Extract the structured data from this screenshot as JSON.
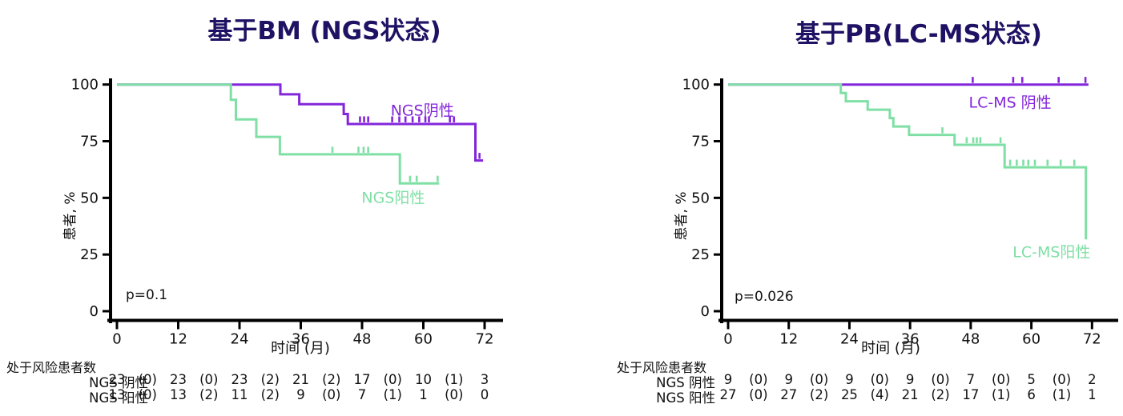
{
  "colors": {
    "negative": "#8325da",
    "positive": "#7fdfa5",
    "title": "#1f1163",
    "axis": "#000000",
    "text": "#111111"
  },
  "chart_data": [
    {
      "type": "line",
      "subtype": "kaplan-meier",
      "title": "基于BM (NGS状态)",
      "xlabel": "时间 (月)",
      "ylabel": "患者, %",
      "p_value": "p=0.1",
      "xlim": [
        0,
        72
      ],
      "ylim": [
        0,
        100
      ],
      "x_ticks": [
        0,
        12,
        24,
        36,
        48,
        60,
        72
      ],
      "y_ticks": [
        0,
        25,
        50,
        75,
        100
      ],
      "grid": false,
      "series": [
        {
          "id": "ngs-negative",
          "name": "NGS阴性",
          "color_key": "negative",
          "n": 23,
          "steps": [
            [
              0,
              100
            ],
            [
              32,
              100
            ],
            [
              32,
              95.7
            ],
            [
              35.7,
              95.7
            ],
            [
              35.7,
              91.3
            ],
            [
              44.4,
              91.3
            ],
            [
              44.4,
              87
            ],
            [
              45.2,
              87
            ],
            [
              45.2,
              82.6
            ],
            [
              70.2,
              82.6
            ],
            [
              70.2,
              66.5
            ],
            [
              71.7,
              66.5
            ]
          ],
          "censor_marks": [
            [
              47.6,
              82.6
            ],
            [
              48.4,
              82.6
            ],
            [
              49.2,
              82.6
            ],
            [
              53.9,
              82.6
            ],
            [
              55.3,
              82.6
            ],
            [
              56.5,
              82.6
            ],
            [
              57.9,
              82.6
            ],
            [
              59.2,
              82.6
            ],
            [
              60.4,
              82.6
            ],
            [
              61.1,
              82.6
            ],
            [
              65.2,
              82.6
            ],
            [
              66,
              82.6
            ],
            [
              71,
              66.5
            ]
          ],
          "label": {
            "text": "NGS阴性",
            "month": 59.8,
            "pct": 88.5
          }
        },
        {
          "id": "ngs-positive",
          "name": "NGS阳性",
          "color_key": "positive",
          "n": 13,
          "steps": [
            [
              0,
              100
            ],
            [
              22.3,
              100
            ],
            [
              22.3,
              93.3
            ],
            [
              23.3,
              93.3
            ],
            [
              23.3,
              84.6
            ],
            [
              27.3,
              84.6
            ],
            [
              27.3,
              76.9
            ],
            [
              31.9,
              76.9
            ],
            [
              31.9,
              69.2
            ],
            [
              55.4,
              69.2
            ],
            [
              55.4,
              56.4
            ],
            [
              63.1,
              56.4
            ]
          ],
          "censor_marks": [
            [
              42.2,
              69.2
            ],
            [
              47.3,
              69.2
            ],
            [
              48.3,
              69.2
            ],
            [
              49.2,
              69.2
            ],
            [
              57.4,
              56.4
            ],
            [
              58.7,
              56.4
            ],
            [
              62.8,
              56.4
            ]
          ],
          "label": {
            "text": "NGS阳性",
            "month": 54.1,
            "pct": 50
          }
        }
      ],
      "risk_table": {
        "header": "处于风险患者数",
        "rows": [
          {
            "label": "NGS 阴性",
            "values": [
              "23",
              "(0)",
              "23",
              "(0)",
              "23",
              "(2)",
              "21",
              "(2)",
              "17",
              "(0)",
              "10",
              "(1)",
              "3"
            ]
          },
          {
            "label": "NGS 阳性",
            "values": [
              "13",
              "(0)",
              "13",
              "(2)",
              "11",
              "(2)",
              "9",
              "(0)",
              "7",
              "(1)",
              "1",
              "(0)",
              "0"
            ]
          }
        ]
      }
    },
    {
      "type": "line",
      "subtype": "kaplan-meier",
      "title": "基于PB(LC-MS状态)",
      "xlabel": "时间 (月)",
      "ylabel": "患者, %",
      "p_value": "p=0.026",
      "xlim": [
        0,
        72
      ],
      "ylim": [
        0,
        100
      ],
      "x_ticks": [
        0,
        12,
        24,
        36,
        48,
        60,
        72
      ],
      "y_ticks": [
        0,
        25,
        50,
        75,
        100
      ],
      "grid": false,
      "series": [
        {
          "id": "lcms-negative",
          "name": "LC-MS 阴性",
          "color_key": "negative",
          "n": 9,
          "steps": [
            [
              0,
              100
            ],
            [
              71.3,
              100
            ]
          ],
          "censor_marks": [
            [
              48.4,
              100
            ],
            [
              56.4,
              100
            ],
            [
              58.2,
              100
            ],
            [
              65.4,
              100
            ],
            [
              70.7,
              100
            ]
          ],
          "label": {
            "text": "LC-MS 阴性",
            "month": 55.8,
            "pct": 92
          }
        },
        {
          "id": "lcms-positive",
          "name": "LC-MS阳性",
          "color_key": "positive",
          "n": 27,
          "steps": [
            [
              0,
              100
            ],
            [
              22.3,
              100
            ],
            [
              22.3,
              96.3
            ],
            [
              23.3,
              96.3
            ],
            [
              23.3,
              92.6
            ],
            [
              27.6,
              92.6
            ],
            [
              27.6,
              88.9
            ],
            [
              32,
              88.9
            ],
            [
              32,
              85.2
            ],
            [
              32.7,
              85.2
            ],
            [
              32.7,
              81.5
            ],
            [
              35.8,
              81.5
            ],
            [
              35.8,
              77.8
            ],
            [
              44.8,
              77.8
            ],
            [
              44.8,
              73.4
            ],
            [
              54.7,
              73.4
            ],
            [
              54.7,
              63.5
            ],
            [
              70.8,
              63.5
            ],
            [
              70.8,
              31.7
            ]
          ],
          "censor_marks": [
            [
              42.4,
              77.8
            ],
            [
              47.2,
              73.4
            ],
            [
              48.5,
              73.4
            ],
            [
              49.2,
              73.4
            ],
            [
              49.9,
              73.4
            ],
            [
              53.9,
              73.4
            ],
            [
              55.8,
              63.5
            ],
            [
              57.1,
              63.5
            ],
            [
              58.4,
              63.5
            ],
            [
              59.4,
              63.5
            ],
            [
              60.7,
              63.5
            ],
            [
              63.2,
              63.5
            ],
            [
              65.8,
              63.5
            ],
            [
              68.5,
              63.5
            ]
          ],
          "label": {
            "text": "LC-MS阳性",
            "month": 64,
            "pct": 26
          }
        }
      ],
      "risk_table": {
        "header": "处于风险患者数",
        "rows": [
          {
            "label": "NGS 阴性",
            "values": [
              "9",
              "(0)",
              "9",
              "(0)",
              "9",
              "(0)",
              "9",
              "(0)",
              "7",
              "(0)",
              "5",
              "(0)",
              "2"
            ]
          },
          {
            "label": "NGS 阳性",
            "values": [
              "27",
              "(0)",
              "27",
              "(2)",
              "25",
              "(4)",
              "21",
              "(2)",
              "17",
              "(1)",
              "6",
              "(1)",
              "1"
            ]
          }
        ]
      }
    }
  ]
}
